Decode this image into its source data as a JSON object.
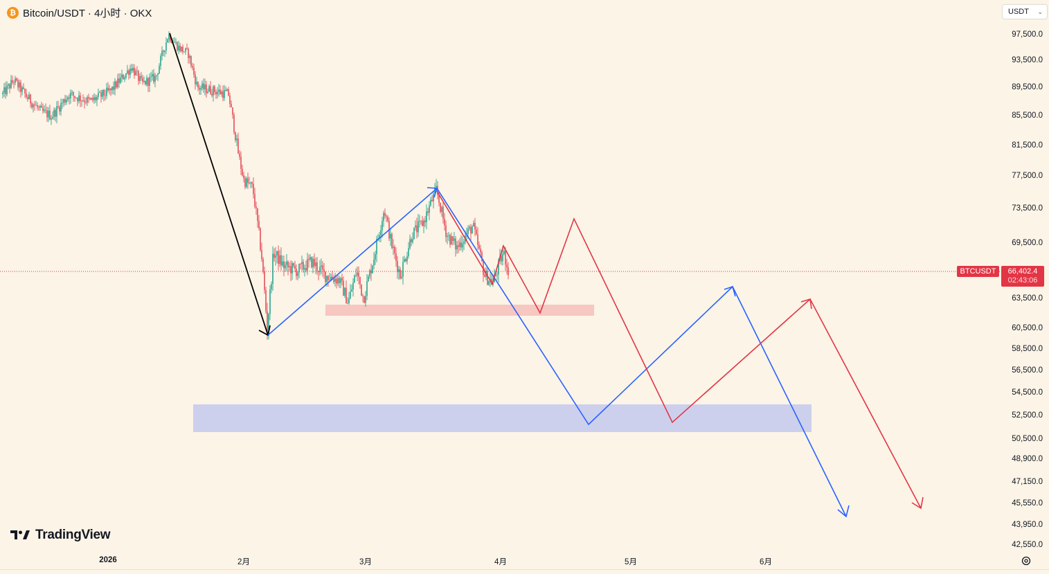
{
  "header": {
    "symbol_title": "Bitcoin/USDT · 4小时 · OKX",
    "coin_icon_glyph": "₿"
  },
  "currency_select": {
    "value": "USDT"
  },
  "price_axis": {
    "ticks": [
      "97,500.0",
      "93,500.0",
      "89,500.0",
      "85,500.0",
      "81,500.0",
      "77,500.0",
      "73,500.0",
      "69,500.0",
      "63,500.0",
      "60,500.0",
      "58,500.0",
      "56,500.0",
      "54,500.0",
      "52,500.0",
      "50,500.0",
      "48,900.0",
      "47,150.0",
      "45,550.0",
      "43,950.0",
      "42,550.0"
    ]
  },
  "time_axis": {
    "labels": [
      "2026",
      "2月",
      "3月",
      "4月",
      "5月",
      "6月"
    ]
  },
  "last_price": {
    "symbol_badge": "BTCUSDT",
    "price": "66,402.4",
    "countdown": "02:43:06"
  },
  "branding": {
    "logo_text": "TradingView"
  },
  "colors": {
    "background": "#fbf4e7",
    "up": "#089981",
    "down": "#e23545",
    "blue_path": "#2962ff",
    "red_path": "#e23545",
    "black_path": "#000000",
    "pink_zone": "#f5b8b4",
    "blue_zone": "#b8c1ef"
  },
  "chart_data": {
    "type": "candlestick",
    "title": "Bitcoin/USDT · 4小时 · OKX",
    "xlabel": "",
    "ylabel": "USDT",
    "y_axis_ticks": [
      97500,
      93500,
      89500,
      85500,
      81500,
      77500,
      73500,
      69500,
      63500,
      60500,
      58500,
      56500,
      54500,
      52500,
      50500,
      48900,
      47150,
      45550,
      43950,
      42550
    ],
    "x_axis_labels": [
      "2026",
      "2月",
      "3月",
      "4月",
      "5月",
      "6月"
    ],
    "price_path_approx": [
      {
        "t": "late Dec 2025",
        "price": 88500
      },
      {
        "t": "early Jan 2026",
        "price": 87000
      },
      {
        "t": "mid Jan 2026",
        "price": 92500
      },
      {
        "t": "peak mid Jan",
        "price": 98000
      },
      {
        "t": "late Jan",
        "price": 89500
      },
      {
        "t": "end Jan",
        "price": 78000
      },
      {
        "t": "early Feb low",
        "price": 60200
      },
      {
        "t": "Feb range",
        "price": 67500
      },
      {
        "t": "late Feb low",
        "price": 63000
      },
      {
        "t": "early Mar",
        "price": 73500
      },
      {
        "t": "mid Mar high",
        "price": 76000
      },
      {
        "t": "late Mar",
        "price": 70500
      },
      {
        "t": "end Mar low",
        "price": 65000
      },
      {
        "t": "current",
        "price": 66402.4
      }
    ],
    "last_price": 66402.4,
    "zones": [
      {
        "name": "pink support zone",
        "from": 62000,
        "to": 62900
      },
      {
        "name": "blue demand zone",
        "from": 50700,
        "to": 53300
      }
    ],
    "drawings": [
      {
        "name": "black decline arrow",
        "points": [
          [
            "mid Jan",
            98000
          ],
          [
            "early Feb",
            60200
          ]
        ]
      },
      {
        "name": "blue rally arrow",
        "points": [
          [
            "early Feb",
            60200
          ],
          [
            "mid Mar",
            76000
          ]
        ]
      },
      {
        "name": "blue projection",
        "points": [
          [
            "mid Mar",
            76000
          ],
          [
            "late Apr",
            51800
          ],
          [
            "late May",
            65500
          ],
          [
            "mid Jun",
            44200
          ]
        ]
      },
      {
        "name": "red projection",
        "points": [
          [
            "mid Mar",
            76000
          ],
          [
            "end Mar",
            65200
          ],
          [
            "early Apr",
            69500
          ],
          [
            "mid Apr",
            62000
          ],
          [
            "late Apr",
            72500
          ],
          [
            "early May",
            51800
          ],
          [
            "mid Jun",
            63800
          ],
          [
            "late Jun",
            45300
          ]
        ]
      }
    ]
  }
}
